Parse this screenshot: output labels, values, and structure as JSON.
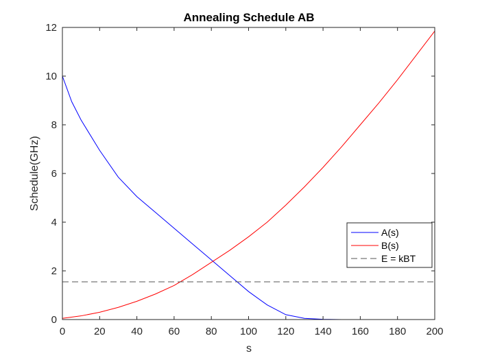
{
  "chart_data": {
    "type": "line",
    "title": "Annealing Schedule AB",
    "xlabel": "s",
    "ylabel": "Schedule(GHz)",
    "xlim": [
      0,
      200
    ],
    "ylim": [
      0,
      12
    ],
    "xticks": [
      0,
      20,
      40,
      60,
      80,
      100,
      120,
      140,
      160,
      180,
      200
    ],
    "yticks": [
      0,
      2,
      4,
      6,
      8,
      10,
      12
    ],
    "grid": false,
    "legend_position": "right",
    "series": [
      {
        "name": "A(s)",
        "color": "#0000ff",
        "style": "solid",
        "x": [
          0,
          5,
          10,
          20,
          30,
          40,
          50,
          60,
          70,
          80,
          90,
          100,
          110,
          120,
          130,
          140,
          150,
          160,
          170,
          180,
          190,
          200
        ],
        "y": [
          10.0,
          8.95,
          8.2,
          6.95,
          5.85,
          5.05,
          4.4,
          3.75,
          3.1,
          2.45,
          1.8,
          1.15,
          0.6,
          0.2,
          0.05,
          0.01,
          0.0,
          0.0,
          0.0,
          0.0,
          0.0,
          0.0
        ]
      },
      {
        "name": "B(s)",
        "color": "#ff0000",
        "style": "solid",
        "x": [
          0,
          10,
          20,
          30,
          40,
          50,
          60,
          70,
          80,
          90,
          100,
          110,
          120,
          130,
          140,
          150,
          160,
          170,
          180,
          190,
          200
        ],
        "y": [
          0.05,
          0.15,
          0.3,
          0.5,
          0.75,
          1.05,
          1.4,
          1.85,
          2.35,
          2.85,
          3.4,
          4.0,
          4.7,
          5.45,
          6.25,
          7.1,
          8.0,
          8.9,
          9.85,
          10.85,
          11.85
        ]
      },
      {
        "name": "E = kBT",
        "color": "#555555",
        "style": "dashed",
        "x": [
          0,
          200
        ],
        "y": [
          1.55,
          1.55
        ]
      }
    ]
  }
}
